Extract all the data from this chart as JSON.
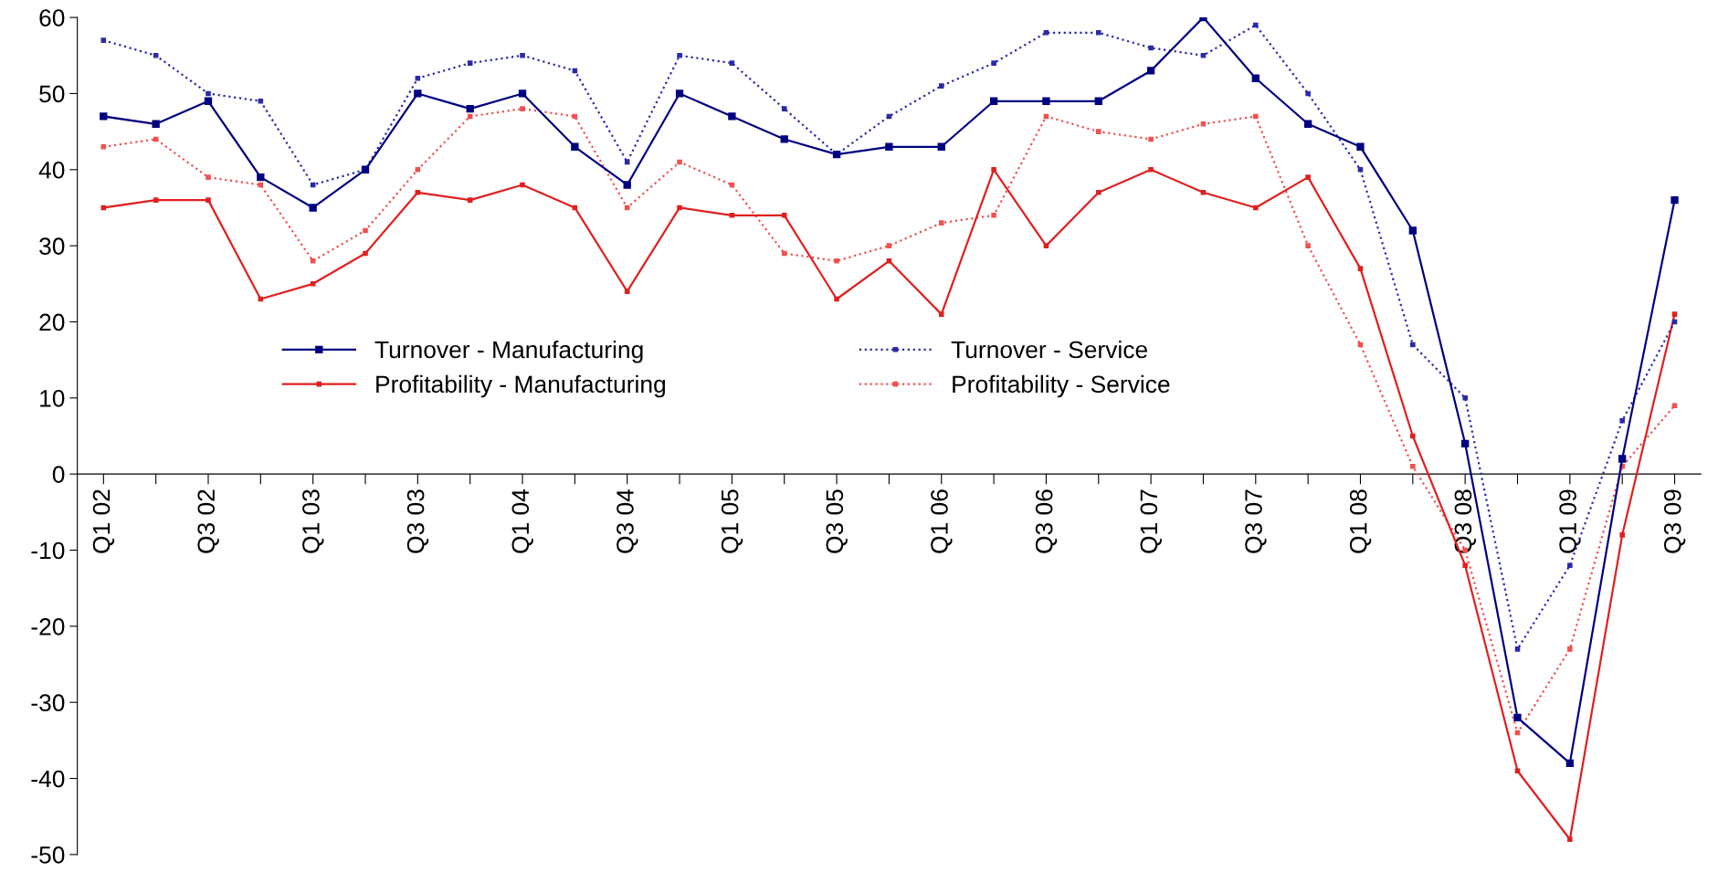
{
  "chart_data": {
    "type": "line",
    "categories": [
      "Q1 02",
      null,
      "Q3 02",
      null,
      "Q1 03",
      null,
      "Q3 03",
      null,
      "Q1 04",
      null,
      "Q3 04",
      null,
      "Q1 05",
      null,
      "Q3 05",
      null,
      "Q1 06",
      null,
      "Q3 06",
      null,
      "Q1 07",
      null,
      "Q3 07",
      null,
      "Q1 08",
      null,
      "Q3 08",
      null,
      "Q1 09",
      null,
      "Q3 09"
    ],
    "series": [
      {
        "name": "Turnover - Manufacturing",
        "color": "#000080",
        "line_style": "solid",
        "values": [
          47,
          46,
          49,
          39,
          35,
          40,
          50,
          48,
          50,
          43,
          38,
          50,
          47,
          44,
          42,
          43,
          43,
          49,
          49,
          49,
          53,
          60,
          52,
          46,
          43,
          32,
          4,
          -32,
          -38,
          2,
          36
        ]
      },
      {
        "name": "Turnover - Service",
        "color": "#2a2aa8",
        "line_style": "dotted",
        "values": [
          57,
          55,
          50,
          49,
          38,
          40,
          52,
          54,
          55,
          53,
          41,
          55,
          54,
          48,
          42,
          47,
          51,
          54,
          58,
          58,
          56,
          55,
          59,
          50,
          40,
          17,
          10,
          -23,
          -12,
          7,
          20
        ]
      },
      {
        "name": "Profitability - Manufacturing",
        "color": "#e02020",
        "line_style": "solid",
        "values": [
          35,
          36,
          36,
          23,
          25,
          29,
          37,
          36,
          38,
          35,
          24,
          35,
          34,
          34,
          23,
          28,
          21,
          40,
          30,
          37,
          40,
          37,
          35,
          39,
          27,
          5,
          -12,
          -39,
          -48,
          -8,
          21
        ]
      },
      {
        "name": "Profitability - Service",
        "color": "#f05050",
        "line_style": "dotted",
        "values": [
          43,
          44,
          39,
          38,
          28,
          32,
          40,
          47,
          48,
          47,
          35,
          41,
          38,
          29,
          28,
          30,
          33,
          34,
          47,
          45,
          44,
          46,
          47,
          30,
          17,
          1,
          -10,
          -34,
          -23,
          1,
          9
        ]
      }
    ],
    "ylim": [
      -50,
      60
    ],
    "yticks": [
      -50,
      -40,
      -30,
      -20,
      -10,
      0,
      10,
      20,
      30,
      40,
      50,
      60
    ],
    "grid": false,
    "legend": "center",
    "marker": "square"
  }
}
